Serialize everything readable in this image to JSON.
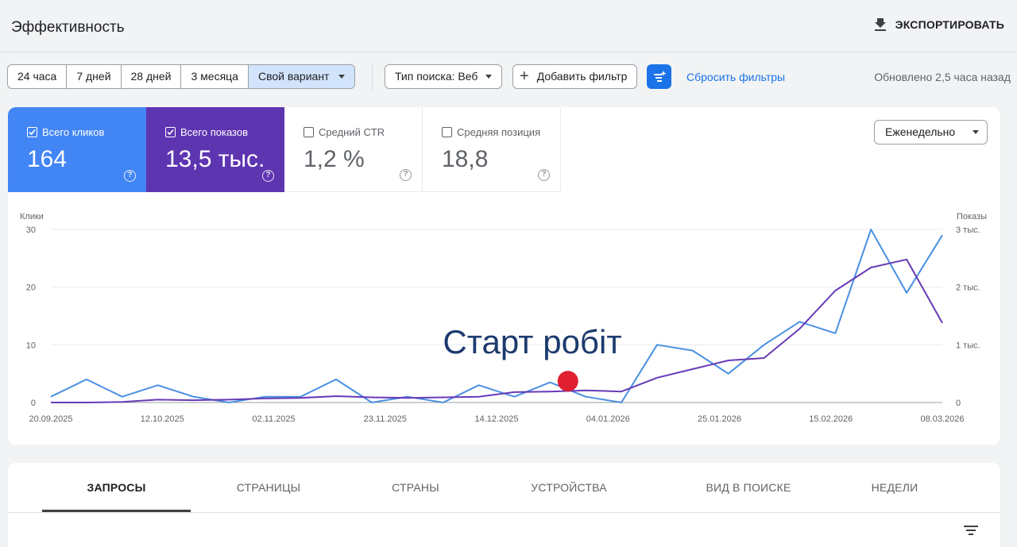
{
  "header": {
    "title": "Эффективность",
    "export_label": "ЭКСПОРТИРОВАТЬ",
    "export_icon": "download-icon"
  },
  "filters": {
    "date_ranges": [
      "24 часа",
      "7 дней",
      "28 дней",
      "3 месяца"
    ],
    "custom_range": "Свой вариант",
    "search_type": "Тип поиска: Веб",
    "add_filter": "Добавить фильтр",
    "reset": "Сбросить фильтры",
    "updated": "Обновлено 2,5 часа назад"
  },
  "metrics": [
    {
      "label": "Всего кликов",
      "value": "164",
      "checked": true,
      "color": "#4285f4"
    },
    {
      "label": "Всего показов",
      "value": "13,5 тыс.",
      "checked": true,
      "color": "#5e35b1"
    },
    {
      "label": "Средний CTR",
      "value": "1,2 %",
      "checked": false
    },
    {
      "label": "Средняя позиция",
      "value": "18,8",
      "checked": false
    }
  ],
  "period": "Еженедельно",
  "chart_data": {
    "type": "line",
    "ylabel_left": "Клики",
    "ylabel_right": "Показы",
    "left_ticks": [
      "0",
      "10",
      "20",
      "30"
    ],
    "right_ticks": [
      "0",
      "1 тыс.",
      "2 тыс.",
      "3 тыс."
    ],
    "ylim_left": [
      0,
      30
    ],
    "ylim_right": [
      0,
      3000
    ],
    "x_tick_labels": [
      "20.09.2025",
      "12.10.2025",
      "02.11.2025",
      "23.11.2025",
      "14.12.2025",
      "04.01.2026",
      "25.01.2026",
      "15.02.2026",
      "08.03.2026"
    ],
    "series": [
      {
        "name": "Всего кликов",
        "color": "#4a90e2",
        "axis": "left",
        "values": [
          1,
          4,
          1,
          3,
          1,
          0,
          1,
          1,
          4,
          0,
          1,
          0,
          3,
          1,
          3.5,
          1,
          0,
          10,
          9,
          5,
          10,
          14,
          12,
          30,
          19,
          29
        ]
      },
      {
        "name": "Всего показов",
        "color": "#673ab7",
        "axis": "right",
        "values": [
          0,
          0,
          10,
          50,
          40,
          50,
          70,
          80,
          110,
          90,
          80,
          90,
          100,
          180,
          190,
          210,
          190,
          430,
          580,
          730,
          770,
          1280,
          1940,
          2340,
          2480,
          1380
        ]
      }
    ],
    "annotation": {
      "text": "Старт робіт",
      "marker_color": "#e02030",
      "x_index": 14.5,
      "y_value": 3.7
    }
  },
  "tabs": [
    "ЗАПРОСЫ",
    "СТРАНИЦЫ",
    "СТРАНЫ",
    "УСТРОЙСТВА",
    "ВИД В ПОИСКЕ",
    "НЕДЕЛИ"
  ]
}
